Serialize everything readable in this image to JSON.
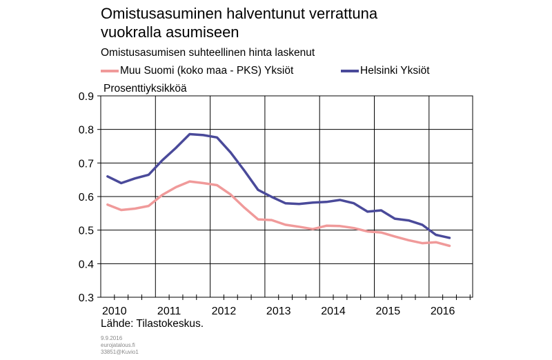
{
  "title_line1": "Omistusasuminen halventunut verrattuna",
  "title_line2": "vuokralla asumiseen",
  "subtitle": "Omistusasumisen suhteellinen hinta laskenut",
  "unit_label": "Prosenttiyksikköä",
  "source": "Lähde: Tilastokeskus.",
  "meta": {
    "date": "9.9.2016",
    "site": "eurojatalous.fi",
    "code": "33851@Kuvio1"
  },
  "chart_data": {
    "type": "line",
    "x_labels": [
      "2010",
      "2011",
      "2012",
      "2013",
      "2014",
      "2015",
      "2016"
    ],
    "ylim": [
      0.3,
      0.9
    ],
    "y_ticks": [
      "0.3",
      "0.4",
      "0.5",
      "0.6",
      "0.7",
      "0.8",
      "0.9"
    ],
    "grid": true,
    "legend_position": "top",
    "series": [
      {
        "name": "Muu Suomi (koko maa - PKS) Yksiöt",
        "color": "#f09a9a",
        "values": [
          0.576,
          0.56,
          0.564,
          0.572,
          0.605,
          0.628,
          0.645,
          0.64,
          0.634,
          0.606,
          0.567,
          0.532,
          0.53,
          0.516,
          0.51,
          0.503,
          0.513,
          0.512,
          0.506,
          0.496,
          0.493,
          0.481,
          0.47,
          0.461,
          0.464,
          0.453
        ]
      },
      {
        "name": "Helsinki Yksiöt",
        "color": "#4a4a9a",
        "values": [
          0.66,
          0.64,
          0.654,
          0.665,
          0.708,
          0.745,
          0.786,
          0.783,
          0.776,
          0.731,
          0.677,
          0.62,
          0.599,
          0.58,
          0.578,
          0.582,
          0.584,
          0.59,
          0.58,
          0.555,
          0.559,
          0.534,
          0.529,
          0.516,
          0.486,
          0.477
        ]
      }
    ]
  }
}
